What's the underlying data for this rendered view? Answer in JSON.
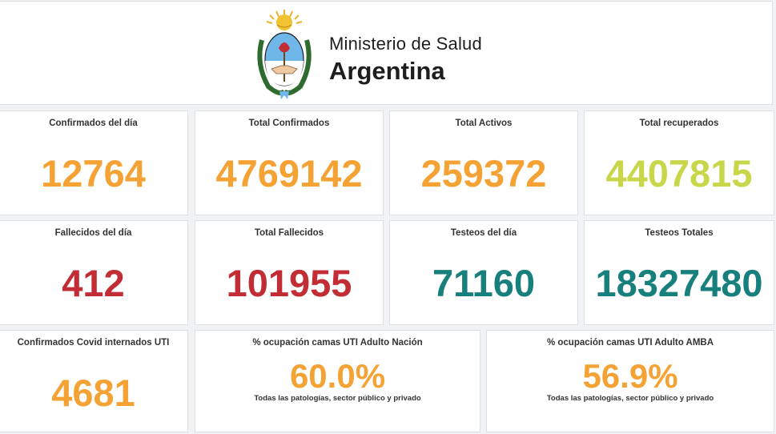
{
  "header": {
    "org_line1": "Ministerio de Salud",
    "org_line2": "Argentina"
  },
  "cards": {
    "confirmados_dia": {
      "label": "Confirmados del día",
      "value": "12764",
      "color": "#f5a234"
    },
    "total_confirmados": {
      "label": "Total Confirmados",
      "value": "4769142",
      "color": "#f5a234"
    },
    "total_activos": {
      "label": "Total Activos",
      "value": "259372",
      "color": "#f5a234"
    },
    "total_recuperados": {
      "label": "Total recuperados",
      "value": "4407815",
      "color": "#c8d74a"
    },
    "fallecidos_dia": {
      "label": "Fallecidos del día",
      "value": "412",
      "color": "#c22d35"
    },
    "total_fallecidos": {
      "label": "Total Fallecidos",
      "value": "101955",
      "color": "#c22d35"
    },
    "testeos_dia": {
      "label": "Testeos del día",
      "value": "71160",
      "color": "#17807d"
    },
    "testeos_totales": {
      "label": "Testeos Totales",
      "value": "18327480",
      "color": "#17807d"
    },
    "internados_uti": {
      "label": "Confirmados Covid internados UTI",
      "value": "4681",
      "color": "#f5a234"
    },
    "ocupacion_nacion": {
      "label": "% ocupación camas UTI Adulto Nación",
      "value": "60.0%",
      "note": "Todas las patologías, sector público y privado",
      "color": "#f5a234"
    },
    "ocupacion_amba": {
      "label": "% ocupación camas UTI Adulto AMBA",
      "value": "56.9%",
      "note": "Todas las patologías, sector público y privado",
      "color": "#f5a234"
    }
  }
}
